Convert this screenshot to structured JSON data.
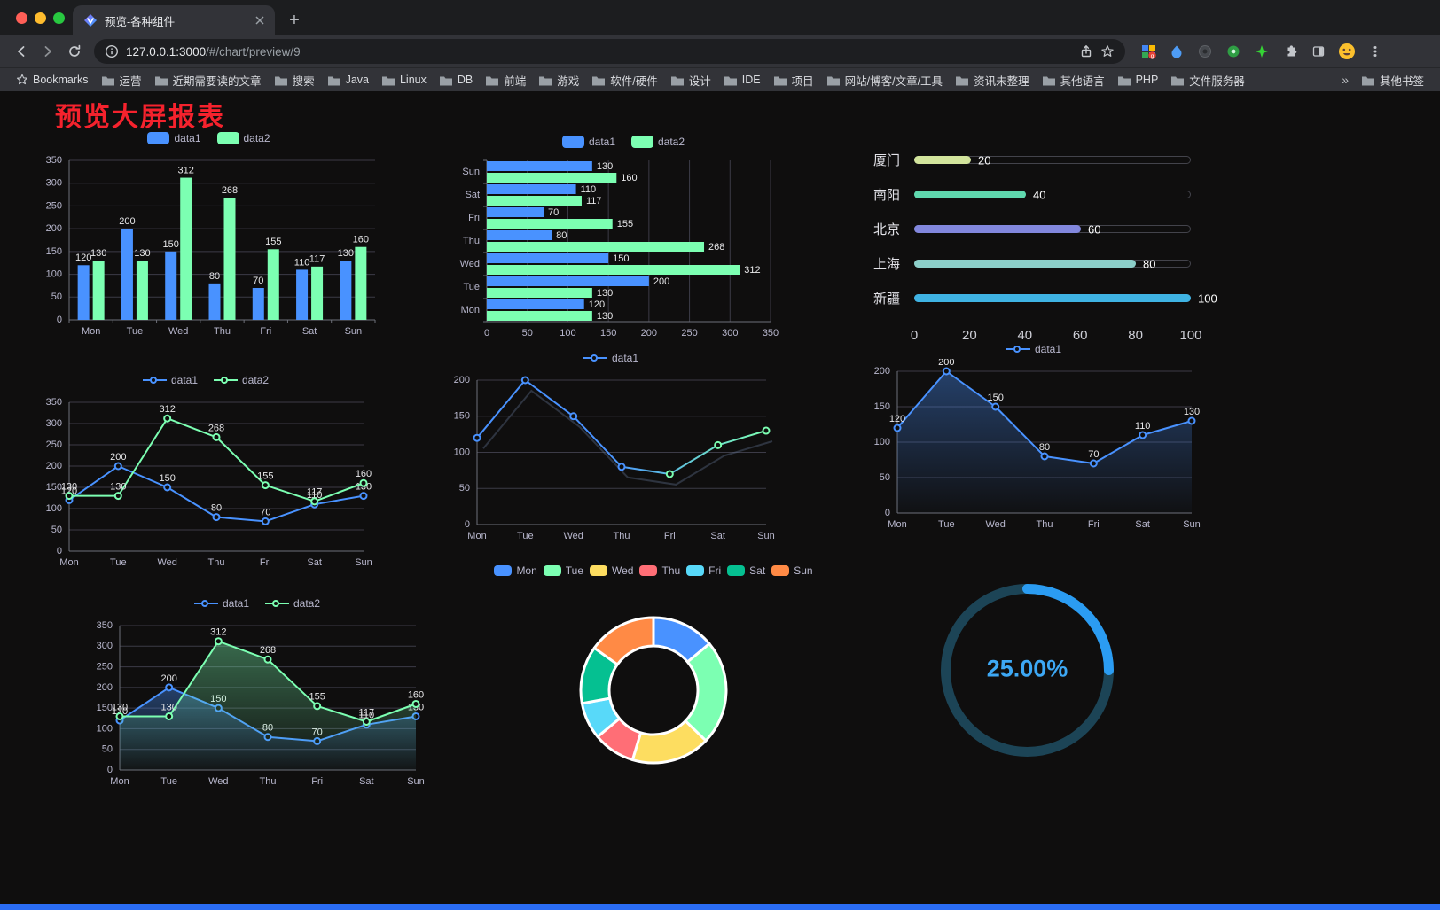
{
  "browser": {
    "window_controls": [
      "close",
      "minimize",
      "zoom"
    ],
    "tab_title": "预览-各种组件",
    "new_tab_label": "+",
    "url_host": "127.0.0.1:3000",
    "url_path": "/#/chart/preview/9",
    "toolbar_icons": [
      "back",
      "forward",
      "reload",
      "page-info",
      "share",
      "bookmark-star",
      "extension-colorful",
      "extension-blue-pin",
      "extension-dark",
      "extension-green",
      "extension-green-star",
      "extensions-puzzle",
      "side-panel",
      "profile-avatar",
      "menu"
    ],
    "bookmarks_bar": {
      "root_label": "Bookmarks",
      "items": [
        "运营",
        "近期需要读的文章",
        "搜索",
        "Java",
        "Linux",
        "DB",
        "前端",
        "游戏",
        "软件/硬件",
        "设计",
        "IDE",
        "项目",
        "网站/博客/文章/工具",
        "资讯未整理",
        "其他语言",
        "PHP",
        "文件服务器"
      ],
      "overflow_glyph": "»",
      "other_label": "其他书签"
    }
  },
  "page": {
    "title": "预览大屏报表",
    "title_color": "#f5222d",
    "background": "#0f0e0e",
    "bottom_bar_color": "#2a6cf4"
  },
  "palette": {
    "blue": "#4992ff",
    "green": "#7cffb2",
    "axis_label": "#b9b8ce",
    "grid_line": "#3c3b47",
    "axis_line": "#6e7079",
    "value_label": "#e8e8ea"
  },
  "chart_data": [
    {
      "id": "bar-grouped",
      "type": "bar",
      "categories": [
        "Mon",
        "Tue",
        "Wed",
        "Thu",
        "Fri",
        "Sat",
        "Sun"
      ],
      "series": [
        {
          "name": "data1",
          "color": "#4992ff",
          "values": [
            120,
            200,
            150,
            80,
            70,
            110,
            130
          ]
        },
        {
          "name": "data2",
          "color": "#7cffb2",
          "values": [
            130,
            130,
            312,
            268,
            155,
            117,
            160
          ]
        }
      ],
      "ymax": 350,
      "yticks": [
        0,
        50,
        100,
        150,
        200,
        250,
        300,
        350
      ],
      "legend": "rect",
      "show_labels": true
    },
    {
      "id": "hbar-grouped",
      "type": "hbar",
      "categories": [
        "Mon",
        "Tue",
        "Wed",
        "Thu",
        "Fri",
        "Sat",
        "Sun"
      ],
      "series": [
        {
          "name": "data1",
          "color": "#4992ff",
          "values": [
            120,
            200,
            150,
            80,
            70,
            110,
            130
          ]
        },
        {
          "name": "data2",
          "color": "#7cffb2",
          "values": [
            130,
            130,
            312,
            268,
            155,
            117,
            160
          ]
        }
      ],
      "xmax": 350,
      "xticks": [
        0,
        50,
        100,
        150,
        200,
        250,
        300,
        350
      ],
      "legend": "rect",
      "show_labels": true
    },
    {
      "id": "progress",
      "type": "progress",
      "max": 100,
      "ticks": [
        0,
        20,
        40,
        60,
        80,
        100
      ],
      "items": [
        {
          "label": "厦门",
          "value": 20,
          "color": "#d2e49c"
        },
        {
          "label": "南阳",
          "value": 40,
          "color": "#5fd8ae"
        },
        {
          "label": "北京",
          "value": 60,
          "color": "#8287dd"
        },
        {
          "label": "上海",
          "value": 80,
          "color": "#8ccfc9"
        },
        {
          "label": "新疆",
          "value": 100,
          "color": "#3fb3e3"
        }
      ]
    },
    {
      "id": "line-two",
      "type": "line",
      "categories": [
        "Mon",
        "Tue",
        "Wed",
        "Thu",
        "Fri",
        "Sat",
        "Sun"
      ],
      "series": [
        {
          "name": "data1",
          "color": "#4992ff",
          "values": [
            120,
            200,
            150,
            80,
            70,
            110,
            130
          ]
        },
        {
          "name": "data2",
          "color": "#7cffb2",
          "values": [
            130,
            130,
            312,
            268,
            155,
            117,
            160
          ]
        }
      ],
      "ymax": 350,
      "yticks": [
        0,
        50,
        100,
        150,
        200,
        250,
        300,
        350
      ],
      "legend": "line",
      "show_labels": true
    },
    {
      "id": "line-gradient",
      "type": "line",
      "categories": [
        "Mon",
        "Tue",
        "Wed",
        "Thu",
        "Fri",
        "Sat",
        "Sun"
      ],
      "series": [
        {
          "name": "data1",
          "color": "#4992ff",
          "color2": "#7cffb2",
          "values": [
            120,
            200,
            150,
            80,
            70,
            110,
            130
          ]
        }
      ],
      "ymax": 200,
      "yticks": [
        0,
        50,
        100,
        150,
        200
      ],
      "legend": "line",
      "show_labels": false,
      "shadow": true
    },
    {
      "id": "area-one",
      "type": "line",
      "categories": [
        "Mon",
        "Tue",
        "Wed",
        "Thu",
        "Fri",
        "Sat",
        "Sun"
      ],
      "series": [
        {
          "name": "data1",
          "color": "#4992ff",
          "values": [
            120,
            200,
            150,
            80,
            70,
            110,
            130
          ],
          "area": true
        }
      ],
      "ymax": 200,
      "yticks": [
        0,
        50,
        100,
        150,
        200
      ],
      "legend": "line",
      "show_labels": true
    },
    {
      "id": "area-two",
      "type": "line",
      "categories": [
        "Mon",
        "Tue",
        "Wed",
        "Thu",
        "Fri",
        "Sat",
        "Sun"
      ],
      "series": [
        {
          "name": "data1",
          "color": "#4992ff",
          "values": [
            120,
            200,
            150,
            80,
            70,
            110,
            130
          ],
          "area": true
        },
        {
          "name": "data2",
          "color": "#7cffb2",
          "values": [
            130,
            130,
            312,
            268,
            155,
            117,
            160
          ],
          "area": true
        }
      ],
      "ymax": 350,
      "yticks": [
        0,
        50,
        100,
        150,
        200,
        250,
        300,
        350
      ],
      "legend": "line",
      "show_labels": true
    },
    {
      "id": "donut",
      "type": "pie",
      "labels": [
        "Mon",
        "Tue",
        "Wed",
        "Thu",
        "Fri",
        "Sat",
        "Sun"
      ],
      "values": [
        120,
        200,
        150,
        80,
        70,
        110,
        130
      ],
      "colors": [
        "#4992ff",
        "#7cffb2",
        "#fddd60",
        "#ff6e76",
        "#58d9f9",
        "#05c091",
        "#ff8a45"
      ],
      "legend": "rect"
    },
    {
      "id": "gauge",
      "type": "gauge",
      "value": 25,
      "text": "25.00%",
      "color": "#2b9cf2",
      "track": "#1c4456"
    }
  ]
}
